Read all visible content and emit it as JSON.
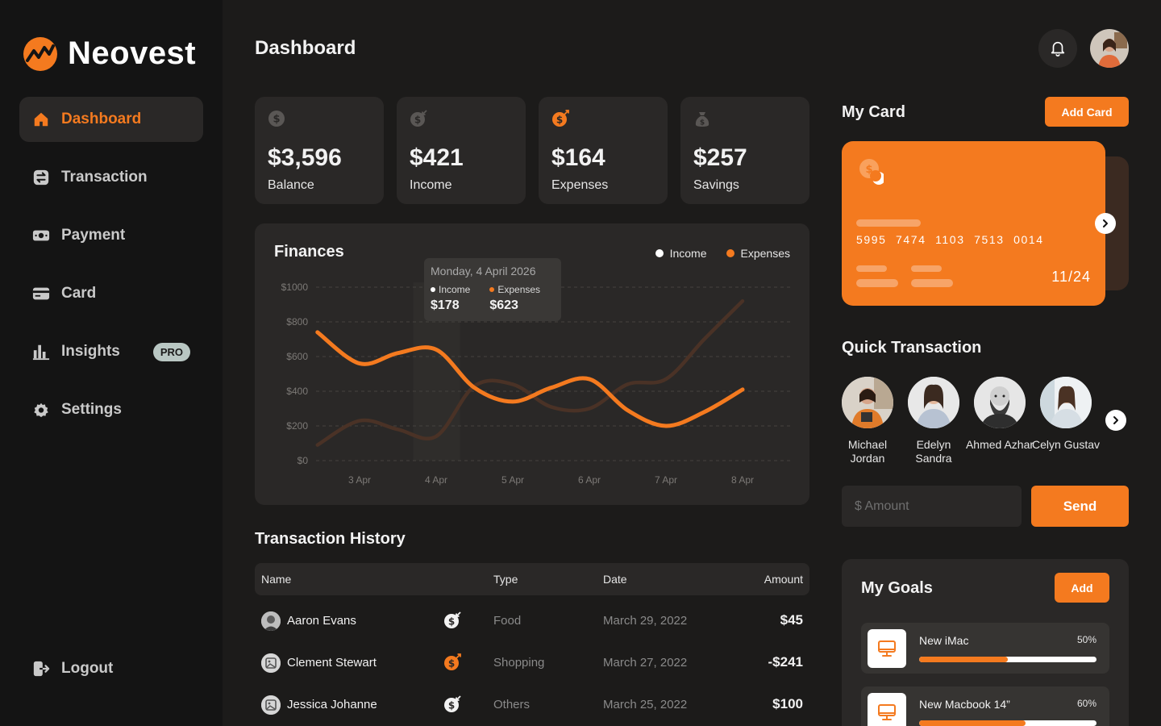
{
  "brand": {
    "name": "Neovest"
  },
  "sidebar": {
    "items": [
      {
        "label": "Dashboard",
        "icon": "home-icon",
        "active": true
      },
      {
        "label": "Transaction",
        "icon": "transaction-icon"
      },
      {
        "label": "Payment",
        "icon": "payment-icon"
      },
      {
        "label": "Card",
        "icon": "card-icon"
      },
      {
        "label": "Insights",
        "icon": "chart-bars-icon",
        "badge": "PRO"
      },
      {
        "label": "Settings",
        "icon": "gear-icon"
      }
    ],
    "logout_label": "Logout"
  },
  "header": {
    "title": "Dashboard"
  },
  "stats": [
    {
      "value": "$3,596",
      "label": "Balance",
      "icon": "dollar-coin-icon"
    },
    {
      "value": "$421",
      "label": "Income",
      "icon": "dollar-in-icon"
    },
    {
      "value": "$164",
      "label": "Expenses",
      "icon": "dollar-out-icon"
    },
    {
      "value": "$257",
      "label": "Savings",
      "icon": "money-bag-icon"
    }
  ],
  "finances": {
    "title": "Finances",
    "legend": {
      "income": "Income",
      "expenses": "Expenses"
    },
    "tooltip": {
      "date": "Monday, 4 April 2026",
      "income_label": "Income",
      "income_value": "$178",
      "expenses_label": "Expenses",
      "expenses_value": "$623"
    }
  },
  "chart_data": {
    "type": "line",
    "title": "Finances",
    "categories": [
      "3 Apr",
      "4 Apr",
      "5 Apr",
      "6 Apr",
      "7 Apr",
      "8 Apr"
    ],
    "y_ticks": [
      "$0",
      "$200",
      "$400",
      "$600",
      "$800",
      "$1000"
    ],
    "ylim": [
      0,
      1000
    ],
    "x": [
      2.45,
      3,
      3.5,
      4,
      4.5,
      5,
      5.5,
      6,
      6.5,
      7,
      7.5,
      8
    ],
    "series": [
      {
        "name": "Income",
        "color": "#4a3226",
        "values": [
          90,
          230,
          180,
          140,
          430,
          440,
          310,
          300,
          440,
          470,
          700,
          920
        ]
      },
      {
        "name": "Expenses",
        "color": "#f47a1f",
        "values": [
          740,
          560,
          620,
          640,
          420,
          340,
          420,
          470,
          290,
          200,
          280,
          410
        ]
      }
    ],
    "legend": "top-right",
    "grid": true
  },
  "transaction_history": {
    "title": "Transaction History",
    "columns": [
      "Name",
      "Type",
      "Date",
      "Amount"
    ],
    "rows": [
      {
        "name": "Aaron Evans",
        "type": "Food",
        "date": "March 29, 2022",
        "amount": "$45",
        "direction_icon": "dollar-in-icon"
      },
      {
        "name": "Clement Stewart",
        "type": "Shopping",
        "date": "March 27, 2022",
        "amount": "-$241",
        "direction_icon": "dollar-out-icon"
      },
      {
        "name": "Jessica Johanne",
        "type": "Others",
        "date": "March 25, 2022",
        "amount": "$100",
        "direction_icon": "dollar-in-icon"
      }
    ]
  },
  "my_card": {
    "title": "My Card",
    "add_label": "Add Card",
    "number": "5995 7474 1103 7513 0014",
    "expiry": "11/24"
  },
  "quick_transaction": {
    "title": "Quick Transaction",
    "contacts": [
      {
        "name": "Michael Jordan"
      },
      {
        "name": "Edelyn Sandra"
      },
      {
        "name": "Ahmed Azhar"
      },
      {
        "name": "Celyn Gustav"
      }
    ],
    "amount_placeholder": "$ Amount",
    "send_label": "Send"
  },
  "goals": {
    "title": "My Goals",
    "add_label": "Add",
    "items": [
      {
        "name": "New iMac",
        "percent_label": "50%",
        "progress": 0.5
      },
      {
        "name": "New Macbook 14”",
        "percent_label": "60%",
        "progress": 0.6
      }
    ]
  },
  "colors": {
    "accent": "#f47a1f",
    "surface": "#2a2827",
    "background": "#1c1b1a",
    "sidebar": "#141414"
  }
}
